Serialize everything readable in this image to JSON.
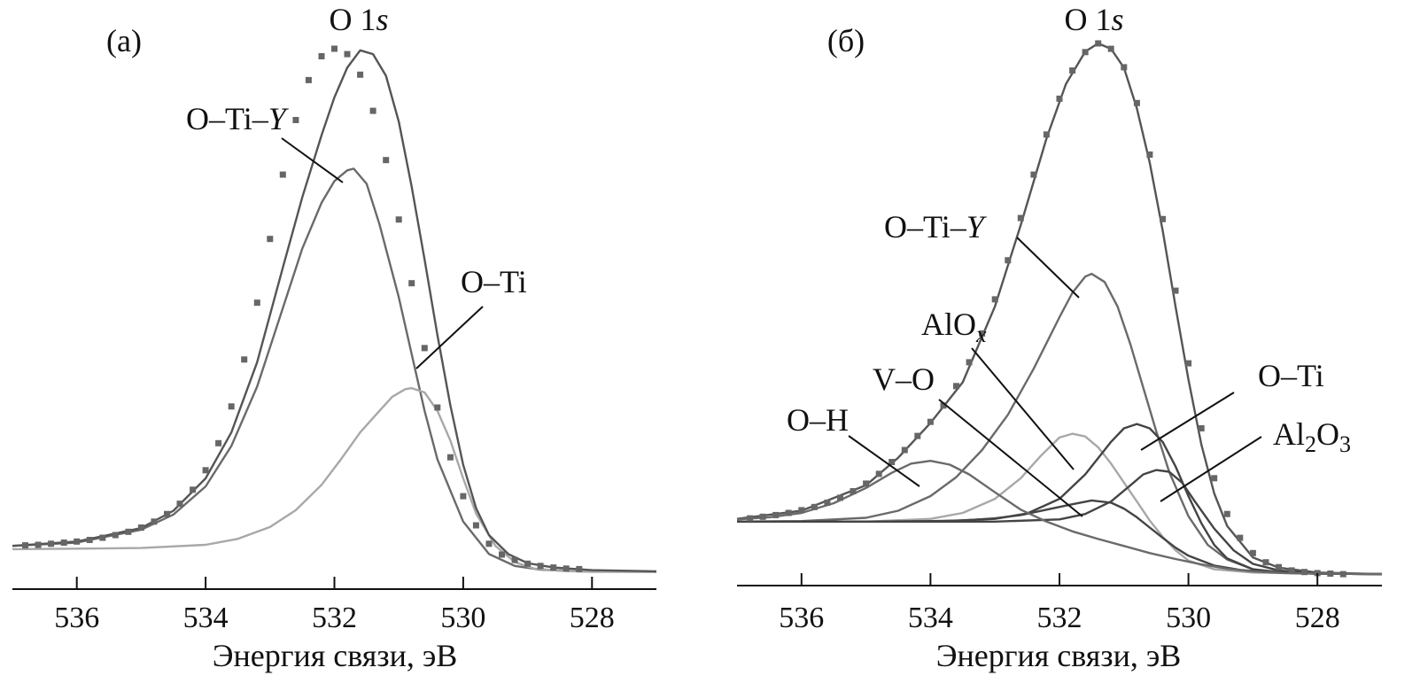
{
  "figure": {
    "colors": {
      "envelope": "#555555",
      "component_dark": "#444444",
      "component_mid": "#6a6a6a",
      "component_light": "#a8a8a8",
      "points": "#666666",
      "axis": "#111111"
    }
  },
  "chart_data": [
    {
      "type": "line",
      "panel_label": "(а)",
      "title": "O 1s",
      "title_main": "O 1",
      "title_italic": "s",
      "xlabel": "Энергия связи, эВ",
      "ylabel": "",
      "x_reversed": true,
      "xlim": [
        537,
        527
      ],
      "ylim": [
        0,
        100
      ],
      "x_ticks": [
        536,
        534,
        532,
        530,
        528
      ],
      "x_tick_labels": [
        "536",
        "534",
        "532",
        "530",
        "528"
      ],
      "background": 7.5,
      "measured": {
        "name": "",
        "x": [
          536.8,
          536.6,
          536.4,
          536.2,
          536.0,
          535.8,
          535.6,
          535.4,
          535.2,
          535.0,
          534.8,
          534.6,
          534.4,
          534.2,
          534.0,
          533.8,
          533.6,
          533.4,
          533.2,
          533.0,
          532.8,
          532.6,
          532.4,
          532.2,
          532.0,
          531.8,
          531.6,
          531.4,
          531.2,
          531.0,
          530.8,
          530.6,
          530.4,
          530.2,
          530.0,
          529.8,
          529.6,
          529.4,
          529.2,
          529.0,
          528.8,
          528.6,
          528.4,
          528.2
        ],
        "y": [
          8.1,
          8.2,
          8.4,
          8.6,
          8.8,
          9.1,
          9.5,
          10.0,
          10.6,
          11.4,
          12.5,
          13.9,
          15.8,
          18.4,
          22.0,
          27.0,
          33.8,
          42.5,
          53.0,
          64.8,
          76.7,
          86.8,
          94.2,
          98.6,
          100.0,
          99.0,
          95.2,
          88.5,
          79.4,
          68.4,
          56.6,
          44.6,
          33.6,
          24.4,
          17.2,
          11.8,
          8.4,
          6.4,
          5.4,
          4.7,
          4.3,
          4.0,
          3.8,
          3.7
        ]
      },
      "series": [
        {
          "name": "O–Ti–Y",
          "label": "O–Ti–",
          "label_italic": "Y",
          "color_role": "component_mid",
          "x": [
            537.0,
            536.0,
            535.0,
            534.5,
            534.0,
            533.6,
            533.2,
            532.8,
            532.5,
            532.2,
            532.0,
            531.8,
            531.7,
            531.5,
            531.3,
            531.0,
            530.8,
            530.6,
            530.4,
            530.0,
            529.6,
            529.2,
            528.8,
            528.2,
            527.0
          ],
          "y": [
            8.0,
            8.6,
            11.0,
            13.8,
            19.0,
            26.5,
            37.5,
            52.0,
            63.0,
            71.5,
            75.5,
            77.5,
            77.8,
            75.0,
            67.5,
            54.0,
            43.5,
            33.0,
            24.0,
            12.5,
            6.5,
            4.3,
            3.6,
            3.3,
            3.2
          ]
        },
        {
          "name": "O–Ti",
          "label": "O–Ti",
          "color_role": "component_light",
          "x": [
            537.0,
            536.0,
            535.0,
            534.0,
            533.5,
            533.0,
            532.6,
            532.2,
            531.9,
            531.6,
            531.3,
            531.1,
            530.9,
            530.8,
            530.6,
            530.4,
            530.2,
            530.0,
            529.8,
            529.5,
            529.2,
            528.9,
            528.5,
            528.0,
            527.0
          ],
          "y": [
            7.4,
            7.5,
            7.6,
            8.2,
            9.3,
            11.5,
            14.6,
            19.3,
            24.0,
            29.0,
            33.0,
            35.6,
            37.0,
            37.2,
            36.4,
            33.0,
            27.5,
            20.5,
            14.0,
            8.0,
            5.0,
            3.8,
            3.4,
            3.2,
            3.2
          ]
        },
        {
          "name": "",
          "label": "",
          "color_role": "envelope",
          "x": [
            537.0,
            536.0,
            535.0,
            534.5,
            534.0,
            533.6,
            533.2,
            532.8,
            532.5,
            532.2,
            532.0,
            531.8,
            531.6,
            531.4,
            531.2,
            531.0,
            530.8,
            530.6,
            530.4,
            530.2,
            530.0,
            529.8,
            529.6,
            529.3,
            529.0,
            528.6,
            528.0,
            527.0
          ],
          "y": [
            8.0,
            8.8,
            11.3,
            14.5,
            20.5,
            29.0,
            42.0,
            59.5,
            72.5,
            84.0,
            91.0,
            96.5,
            99.7,
            99.0,
            95.0,
            86.5,
            74.5,
            61.0,
            47.0,
            34.0,
            23.0,
            15.0,
            10.0,
            6.5,
            4.8,
            4.0,
            3.5,
            3.3
          ]
        }
      ],
      "annotations": [
        {
          "text": "O–Ti–Y",
          "points_to_x": 531.9
        },
        {
          "text": "O–Ti",
          "points_to_x": 530.8
        }
      ]
    },
    {
      "type": "line",
      "panel_label": "(б)",
      "title": "O 1s",
      "title_main": "O 1",
      "title_italic": "s",
      "xlabel": "Энергия связи, эВ",
      "ylabel": "",
      "x_reversed": true,
      "xlim": [
        537,
        527
      ],
      "ylim": [
        0,
        100
      ],
      "x_ticks": [
        536,
        534,
        532,
        530,
        528
      ],
      "x_tick_labels": [
        "536",
        "534",
        "532",
        "530",
        "528"
      ],
      "measured": {
        "name": "",
        "x": [
          536.8,
          536.6,
          536.4,
          536.2,
          536.0,
          535.8,
          535.6,
          535.4,
          535.2,
          535.0,
          534.8,
          534.6,
          534.4,
          534.2,
          534.0,
          533.8,
          533.6,
          533.4,
          533.2,
          533.0,
          532.8,
          532.6,
          532.4,
          532.2,
          532.0,
          531.8,
          531.6,
          531.4,
          531.2,
          531.0,
          530.8,
          530.6,
          530.4,
          530.2,
          530.0,
          529.8,
          529.6,
          529.4,
          529.2,
          529.0,
          528.8,
          528.6,
          528.4,
          528.2,
          528.0,
          527.8,
          527.6
        ],
        "y": [
          12.4,
          12.7,
          13.0,
          13.4,
          13.9,
          14.5,
          15.3,
          16.2,
          17.4,
          18.8,
          20.6,
          22.8,
          25.0,
          27.6,
          30.2,
          33.2,
          36.8,
          41.2,
          46.5,
          52.8,
          60.0,
          67.8,
          75.8,
          83.2,
          89.8,
          95.0,
          98.4,
          100.0,
          99.0,
          95.6,
          89.0,
          79.5,
          67.6,
          54.4,
          41.0,
          29.0,
          19.8,
          13.2,
          8.8,
          6.0,
          4.3,
          3.4,
          2.8,
          2.5,
          2.3,
          2.2,
          2.1
        ]
      },
      "series": [
        {
          "name": "",
          "label": "",
          "color_role": "envelope",
          "x": [
            537.0,
            536.0,
            535.0,
            534.5,
            534.0,
            533.5,
            533.0,
            532.6,
            532.2,
            531.9,
            531.6,
            531.4,
            531.2,
            531.0,
            530.8,
            530.6,
            530.4,
            530.2,
            530.0,
            529.8,
            529.6,
            529.4,
            529.0,
            528.6,
            528.0,
            527.0
          ],
          "y": [
            12.3,
            13.8,
            18.5,
            23.6,
            30.0,
            37.5,
            51.5,
            66.5,
            82.5,
            92.5,
            98.5,
            100.0,
            99.0,
            95.5,
            88.0,
            78.0,
            65.5,
            51.5,
            38.0,
            26.0,
            17.0,
            11.0,
            5.2,
            3.3,
            2.4,
            2.1
          ]
        },
        {
          "name": "O–Ti–Y",
          "label": "O–Ti–",
          "label_italic": "Y",
          "color_role": "component_mid",
          "x": [
            537.0,
            536.0,
            535.0,
            534.5,
            534.0,
            533.6,
            533.2,
            532.8,
            532.4,
            532.0,
            531.8,
            531.6,
            531.5,
            531.3,
            531.1,
            530.9,
            530.7,
            530.5,
            530.3,
            530.0,
            529.7,
            529.4,
            529.0,
            528.5,
            528.0,
            527.0
          ],
          "y": [
            11.8,
            11.9,
            12.5,
            13.8,
            16.5,
            20.0,
            25.0,
            31.5,
            40.0,
            49.5,
            54.0,
            57.0,
            57.5,
            56.0,
            51.5,
            44.5,
            36.5,
            28.5,
            21.0,
            12.8,
            7.5,
            4.8,
            3.0,
            2.4,
            2.2,
            2.1
          ]
        },
        {
          "name": "AlOx",
          "label": "AlO",
          "label_sub_italic": "x",
          "color_role": "component_light",
          "x": [
            537.0,
            536.0,
            535.0,
            534.0,
            533.5,
            533.0,
            532.6,
            532.3,
            532.0,
            531.8,
            531.6,
            531.4,
            531.2,
            531.0,
            530.8,
            530.6,
            530.4,
            530.2,
            530.0,
            529.6,
            529.0,
            528.0,
            527.0
          ],
          "y": [
            11.8,
            11.8,
            11.8,
            12.3,
            13.4,
            16.0,
            19.8,
            23.8,
            27.3,
            28.0,
            27.5,
            25.5,
            22.5,
            19.0,
            15.5,
            12.0,
            9.0,
            6.5,
            4.6,
            3.0,
            2.4,
            2.2,
            2.1
          ]
        },
        {
          "name": "V–O",
          "label": "V–O",
          "color_role": "component_dark",
          "x": [
            537.0,
            536.0,
            535.0,
            534.0,
            533.5,
            533.0,
            532.6,
            532.2,
            531.8,
            531.5,
            531.2,
            531.0,
            530.8,
            530.6,
            530.4,
            530.2,
            530.0,
            529.6,
            529.2,
            528.8,
            528.4,
            528.0,
            527.0
          ],
          "y": [
            11.8,
            11.8,
            11.8,
            11.9,
            12.0,
            12.4,
            13.0,
            14.0,
            15.0,
            15.7,
            15.3,
            14.2,
            12.6,
            10.7,
            8.8,
            7.0,
            5.5,
            3.7,
            2.9,
            2.5,
            2.3,
            2.2,
            2.1
          ]
        },
        {
          "name": "O–Ti",
          "label": "O–Ti",
          "color_role": "component_dark",
          "x": [
            537.0,
            536.0,
            535.0,
            534.0,
            533.0,
            532.5,
            532.0,
            531.6,
            531.2,
            531.0,
            530.8,
            530.6,
            530.4,
            530.2,
            530.0,
            529.8,
            529.6,
            529.4,
            529.0,
            528.6,
            528.0,
            527.0
          ],
          "y": [
            11.8,
            11.8,
            11.8,
            11.8,
            12.3,
            13.3,
            16.0,
            20.5,
            26.5,
            29.0,
            29.8,
            29.0,
            26.5,
            22.0,
            16.5,
            11.5,
            7.5,
            5.0,
            3.0,
            2.4,
            2.2,
            2.1
          ]
        },
        {
          "name": "Al2O3",
          "label": "Al",
          "label_sub1": "2",
          "label_mid": "O",
          "label_sub2": "3",
          "color_role": "component_dark",
          "x": [
            537.0,
            536.0,
            535.0,
            534.0,
            533.0,
            532.0,
            531.6,
            531.2,
            530.9,
            530.7,
            530.5,
            530.3,
            530.1,
            529.9,
            529.6,
            529.3,
            529.0,
            528.6,
            528.0,
            527.0
          ],
          "y": [
            11.8,
            11.8,
            11.8,
            11.8,
            11.8,
            12.2,
            13.2,
            15.5,
            18.5,
            20.5,
            21.3,
            21.0,
            19.0,
            15.5,
            10.5,
            6.5,
            4.0,
            2.8,
            2.2,
            2.1
          ]
        },
        {
          "name": "O–H",
          "label": "O–H",
          "color_role": "component_mid",
          "x": [
            537.0,
            536.5,
            536.0,
            535.5,
            535.0,
            534.6,
            534.3,
            534.0,
            533.7,
            533.4,
            533.0,
            532.6,
            532.2,
            531.8,
            531.4,
            531.0,
            530.6,
            530.2,
            529.8,
            529.4,
            529.0,
            528.5,
            528.0,
            527.0
          ],
          "y": [
            12.2,
            12.6,
            13.4,
            15.2,
            18.0,
            20.8,
            22.5,
            23.0,
            22.3,
            20.5,
            17.2,
            14.0,
            11.8,
            10.0,
            8.6,
            7.3,
            6.0,
            4.9,
            3.9,
            3.1,
            2.6,
            2.3,
            2.2,
            2.1
          ]
        }
      ],
      "annotations": [
        {
          "text": "O–Ti–Y",
          "points_to_x": 531.6
        },
        {
          "text": "AlOx",
          "points_to_x": 531.8
        },
        {
          "text": "V–O",
          "points_to_x": 531.6
        },
        {
          "text": "O–H",
          "points_to_x": 534.2
        },
        {
          "text": "O–Ti",
          "points_to_x": 530.9
        },
        {
          "text": "Al2O3",
          "points_to_x": 530.5
        }
      ]
    }
  ]
}
